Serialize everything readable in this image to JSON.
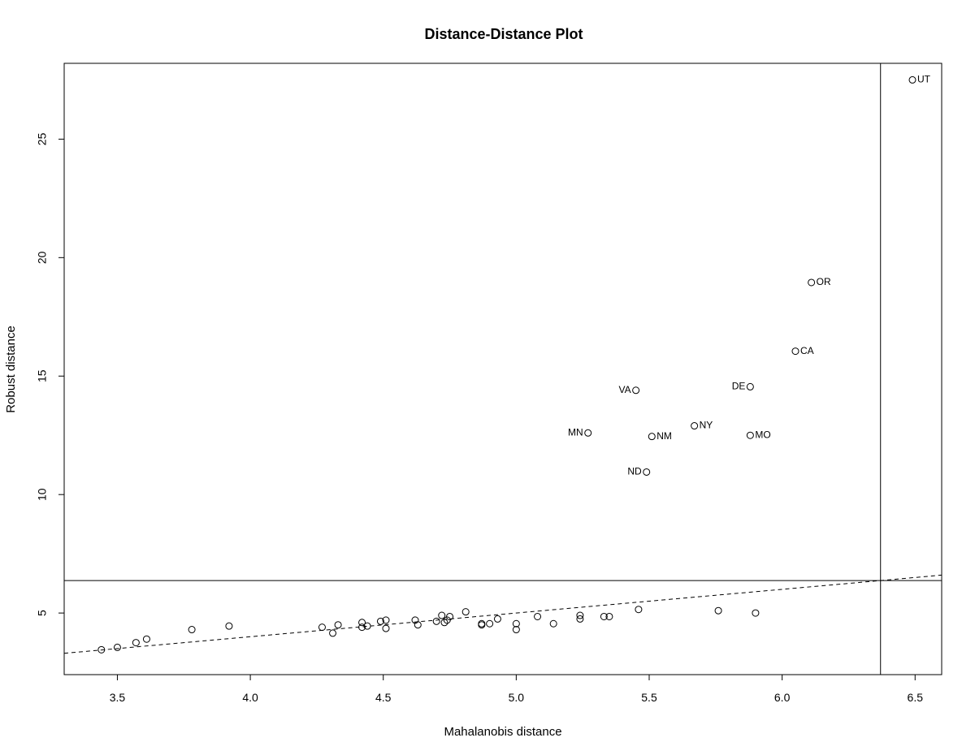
{
  "chart_data": {
    "type": "scatter",
    "title": "Distance-Distance Plot",
    "xlabel": "Mahalanobis distance",
    "ylabel": "Robust distance",
    "xlim": [
      3.3,
      6.6
    ],
    "ylim": [
      2.4,
      28.2
    ],
    "xticks": [
      "3.5",
      "4.0",
      "4.5",
      "5.0",
      "5.5",
      "6.0",
      "6.5"
    ],
    "yticks": [
      "5",
      "10",
      "15",
      "20",
      "25"
    ],
    "grid": false,
    "legend": "none",
    "cutoff_x": 6.37,
    "cutoff_y": 6.37,
    "reference_line": {
      "style": "dashed",
      "from": [
        3.3,
        3.3
      ],
      "to": [
        6.6,
        6.6
      ]
    },
    "points": [
      {
        "x": 3.44,
        "y": 3.45,
        "label": ""
      },
      {
        "x": 3.5,
        "y": 3.55,
        "label": ""
      },
      {
        "x": 3.57,
        "y": 3.75,
        "label": ""
      },
      {
        "x": 3.61,
        "y": 3.9,
        "label": ""
      },
      {
        "x": 3.78,
        "y": 4.3,
        "label": ""
      },
      {
        "x": 3.92,
        "y": 4.45,
        "label": ""
      },
      {
        "x": 4.27,
        "y": 4.4,
        "label": ""
      },
      {
        "x": 4.31,
        "y": 4.15,
        "label": ""
      },
      {
        "x": 4.33,
        "y": 4.5,
        "label": ""
      },
      {
        "x": 4.42,
        "y": 4.6,
        "label": ""
      },
      {
        "x": 4.42,
        "y": 4.4,
        "label": ""
      },
      {
        "x": 4.44,
        "y": 4.45,
        "label": ""
      },
      {
        "x": 4.49,
        "y": 4.65,
        "label": ""
      },
      {
        "x": 4.51,
        "y": 4.7,
        "label": ""
      },
      {
        "x": 4.51,
        "y": 4.35,
        "label": ""
      },
      {
        "x": 4.62,
        "y": 4.7,
        "label": ""
      },
      {
        "x": 4.63,
        "y": 4.5,
        "label": ""
      },
      {
        "x": 4.7,
        "y": 4.65,
        "label": ""
      },
      {
        "x": 4.72,
        "y": 4.9,
        "label": ""
      },
      {
        "x": 4.73,
        "y": 4.6,
        "label": ""
      },
      {
        "x": 4.74,
        "y": 4.7,
        "label": ""
      },
      {
        "x": 4.75,
        "y": 4.85,
        "label": ""
      },
      {
        "x": 4.81,
        "y": 5.05,
        "label": ""
      },
      {
        "x": 4.87,
        "y": 4.55,
        "label": ""
      },
      {
        "x": 4.87,
        "y": 4.5,
        "label": ""
      },
      {
        "x": 4.9,
        "y": 4.55,
        "label": ""
      },
      {
        "x": 4.93,
        "y": 4.75,
        "label": ""
      },
      {
        "x": 5.0,
        "y": 4.55,
        "label": ""
      },
      {
        "x": 5.0,
        "y": 4.3,
        "label": ""
      },
      {
        "x": 5.08,
        "y": 4.85,
        "label": ""
      },
      {
        "x": 5.14,
        "y": 4.55,
        "label": ""
      },
      {
        "x": 5.24,
        "y": 4.9,
        "label": ""
      },
      {
        "x": 5.24,
        "y": 4.75,
        "label": ""
      },
      {
        "x": 5.33,
        "y": 4.85,
        "label": ""
      },
      {
        "x": 5.35,
        "y": 4.85,
        "label": ""
      },
      {
        "x": 5.46,
        "y": 5.15,
        "label": ""
      },
      {
        "x": 5.76,
        "y": 5.1,
        "label": ""
      },
      {
        "x": 5.9,
        "y": 5.0,
        "label": ""
      },
      {
        "x": 5.27,
        "y": 12.6,
        "label": "MN"
      },
      {
        "x": 5.45,
        "y": 14.4,
        "label": "VA"
      },
      {
        "x": 5.49,
        "y": 10.95,
        "label": "ND"
      },
      {
        "x": 5.51,
        "y": 12.45,
        "label": "NM"
      },
      {
        "x": 5.67,
        "y": 12.9,
        "label": "NY"
      },
      {
        "x": 5.88,
        "y": 14.55,
        "label": "DE"
      },
      {
        "x": 5.88,
        "y": 12.5,
        "label": "MO"
      },
      {
        "x": 6.05,
        "y": 16.05,
        "label": "CA"
      },
      {
        "x": 6.11,
        "y": 18.95,
        "label": "OR"
      },
      {
        "x": 6.49,
        "y": 27.5,
        "label": "UT"
      }
    ]
  }
}
